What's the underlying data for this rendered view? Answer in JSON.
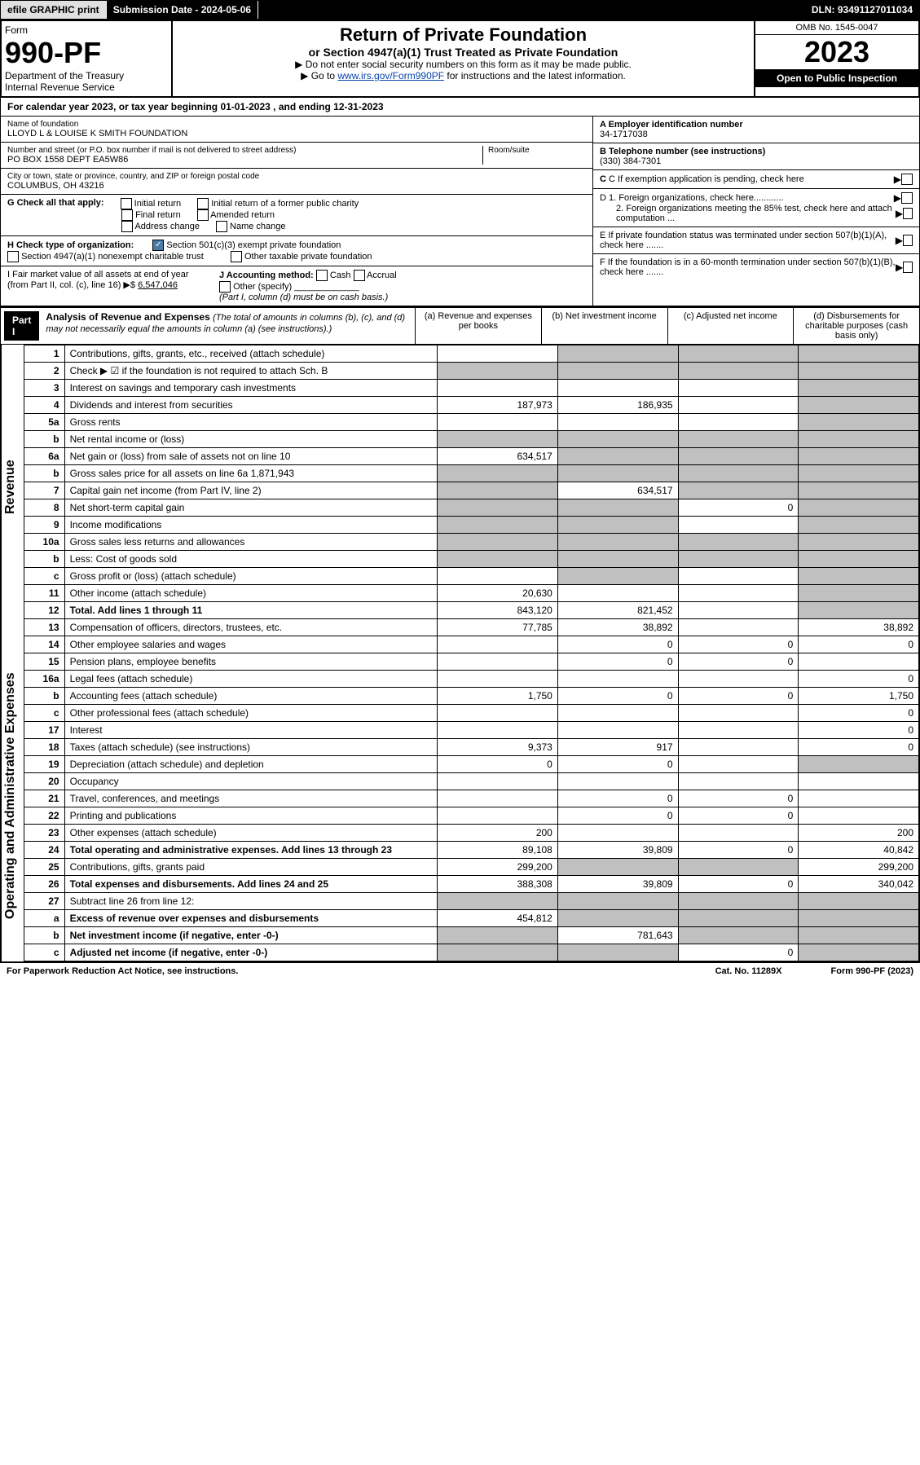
{
  "topbar": {
    "efile": "efile GRAPHIC print",
    "submission": "Submission Date - 2024-05-06",
    "dln": "DLN: 93491127011034"
  },
  "header": {
    "form_label": "Form",
    "form_no": "990-PF",
    "dept": "Department of the Treasury",
    "irs": "Internal Revenue Service",
    "title": "Return of Private Foundation",
    "subtitle": "or Section 4947(a)(1) Trust Treated as Private Foundation",
    "instr1": "▶ Do not enter social security numbers on this form as it may be made public.",
    "instr2_pre": "▶ Go to ",
    "instr2_link": "www.irs.gov/Form990PF",
    "instr2_post": " for instructions and the latest information.",
    "omb": "OMB No. 1545-0047",
    "year": "2023",
    "open": "Open to Public Inspection"
  },
  "calyear": "For calendar year 2023, or tax year beginning 01-01-2023          , and ending 12-31-2023",
  "foundation": {
    "name_label": "Name of foundation",
    "name": "LLOYD L & LOUISE K SMITH FOUNDATION",
    "addr_label": "Number and street (or P.O. box number if mail is not delivered to street address)",
    "addr": "PO BOX 1558 DEPT EA5W86",
    "room_label": "Room/suite",
    "city_label": "City or town, state or province, country, and ZIP or foreign postal code",
    "city": "COLUMBUS, OH  43216",
    "ein_label": "A Employer identification number",
    "ein": "34-1717038",
    "phone_label": "B Telephone number (see instructions)",
    "phone": "(330) 384-7301",
    "c_label": "C If exemption application is pending, check here",
    "d1": "D 1. Foreign organizations, check here............",
    "d2": "2. Foreign organizations meeting the 85% test, check here and attach computation ...",
    "e_label": "E  If private foundation status was terminated under section 507(b)(1)(A), check here .......",
    "f_label": "F  If the foundation is in a 60-month termination under section 507(b)(1)(B), check here ......."
  },
  "checks": {
    "g_label": "G Check all that apply:",
    "initial": "Initial return",
    "initial_former": "Initial return of a former public charity",
    "final": "Final return",
    "amended": "Amended return",
    "address": "Address change",
    "name": "Name change",
    "h_label": "H Check type of organization:",
    "501c3": "Section 501(c)(3) exempt private foundation",
    "4947": "Section 4947(a)(1) nonexempt charitable trust",
    "other_taxable": "Other taxable private foundation",
    "i_label": "I Fair market value of all assets at end of year (from Part II, col. (c), line 16)",
    "i_value": "6,547,046",
    "j_label": "J Accounting method:",
    "cash": "Cash",
    "accrual": "Accrual",
    "other_specify": "Other (specify)",
    "j_note": "(Part I, column (d) must be on cash basis.)"
  },
  "part1": {
    "label": "Part I",
    "title": "Analysis of Revenue and Expenses",
    "subtitle": "(The total of amounts in columns (b), (c), and (d) may not necessarily equal the amounts in column (a) (see instructions).)",
    "col_a": "(a)   Revenue and expenses per books",
    "col_b": "(b)   Net investment income",
    "col_c": "(c)   Adjusted net income",
    "col_d": "(d)   Disbursements for charitable purposes (cash basis only)"
  },
  "side": {
    "revenue": "Revenue",
    "expenses": "Operating and Administrative Expenses"
  },
  "rows": [
    {
      "n": "1",
      "desc": "Contributions, gifts, grants, etc., received (attach schedule)",
      "a": "",
      "b": "shaded",
      "c": "shaded",
      "d": "shaded"
    },
    {
      "n": "2",
      "desc": "Check ▶ ☑ if the foundation is not required to attach Sch. B",
      "a": "shaded",
      "b": "shaded",
      "c": "shaded",
      "d": "shaded"
    },
    {
      "n": "3",
      "desc": "Interest on savings and temporary cash investments",
      "a": "",
      "b": "",
      "c": "",
      "d": "shaded"
    },
    {
      "n": "4",
      "desc": "Dividends and interest from securities",
      "a": "187,973",
      "b": "186,935",
      "c": "",
      "d": "shaded"
    },
    {
      "n": "5a",
      "desc": "Gross rents",
      "a": "",
      "b": "",
      "c": "",
      "d": "shaded"
    },
    {
      "n": "b",
      "desc": "Net rental income or (loss)",
      "a": "shaded",
      "b": "shaded",
      "c": "shaded",
      "d": "shaded"
    },
    {
      "n": "6a",
      "desc": "Net gain or (loss) from sale of assets not on line 10",
      "a": "634,517",
      "b": "shaded",
      "c": "shaded",
      "d": "shaded"
    },
    {
      "n": "b",
      "desc": "Gross sales price for all assets on line 6a        1,871,943",
      "a": "shaded",
      "b": "shaded",
      "c": "shaded",
      "d": "shaded"
    },
    {
      "n": "7",
      "desc": "Capital gain net income (from Part IV, line 2)",
      "a": "shaded",
      "b": "634,517",
      "c": "shaded",
      "d": "shaded"
    },
    {
      "n": "8",
      "desc": "Net short-term capital gain",
      "a": "shaded",
      "b": "shaded",
      "c": "0",
      "d": "shaded"
    },
    {
      "n": "9",
      "desc": "Income modifications",
      "a": "shaded",
      "b": "shaded",
      "c": "",
      "d": "shaded"
    },
    {
      "n": "10a",
      "desc": "Gross sales less returns and allowances",
      "a": "shaded",
      "b": "shaded",
      "c": "shaded",
      "d": "shaded"
    },
    {
      "n": "b",
      "desc": "Less: Cost of goods sold",
      "a": "shaded",
      "b": "shaded",
      "c": "shaded",
      "d": "shaded"
    },
    {
      "n": "c",
      "desc": "Gross profit or (loss) (attach schedule)",
      "a": "",
      "b": "shaded",
      "c": "",
      "d": "shaded"
    },
    {
      "n": "11",
      "desc": "Other income (attach schedule)",
      "a": "20,630",
      "b": "",
      "c": "",
      "d": "shaded"
    },
    {
      "n": "12",
      "desc": "Total. Add lines 1 through 11",
      "a": "843,120",
      "b": "821,452",
      "c": "",
      "d": "shaded",
      "bold": true
    },
    {
      "n": "13",
      "desc": "Compensation of officers, directors, trustees, etc.",
      "a": "77,785",
      "b": "38,892",
      "c": "",
      "d": "38,892"
    },
    {
      "n": "14",
      "desc": "Other employee salaries and wages",
      "a": "",
      "b": "0",
      "c": "0",
      "d": "0"
    },
    {
      "n": "15",
      "desc": "Pension plans, employee benefits",
      "a": "",
      "b": "0",
      "c": "0",
      "d": ""
    },
    {
      "n": "16a",
      "desc": "Legal fees (attach schedule)",
      "a": "",
      "b": "",
      "c": "",
      "d": "0"
    },
    {
      "n": "b",
      "desc": "Accounting fees (attach schedule)",
      "a": "1,750",
      "b": "0",
      "c": "0",
      "d": "1,750"
    },
    {
      "n": "c",
      "desc": "Other professional fees (attach schedule)",
      "a": "",
      "b": "",
      "c": "",
      "d": "0"
    },
    {
      "n": "17",
      "desc": "Interest",
      "a": "",
      "b": "",
      "c": "",
      "d": "0"
    },
    {
      "n": "18",
      "desc": "Taxes (attach schedule) (see instructions)",
      "a": "9,373",
      "b": "917",
      "c": "",
      "d": "0"
    },
    {
      "n": "19",
      "desc": "Depreciation (attach schedule) and depletion",
      "a": "0",
      "b": "0",
      "c": "",
      "d": "shaded"
    },
    {
      "n": "20",
      "desc": "Occupancy",
      "a": "",
      "b": "",
      "c": "",
      "d": ""
    },
    {
      "n": "21",
      "desc": "Travel, conferences, and meetings",
      "a": "",
      "b": "0",
      "c": "0",
      "d": ""
    },
    {
      "n": "22",
      "desc": "Printing and publications",
      "a": "",
      "b": "0",
      "c": "0",
      "d": ""
    },
    {
      "n": "23",
      "desc": "Other expenses (attach schedule)",
      "a": "200",
      "b": "",
      "c": "",
      "d": "200"
    },
    {
      "n": "24",
      "desc": "Total operating and administrative expenses. Add lines 13 through 23",
      "a": "89,108",
      "b": "39,809",
      "c": "0",
      "d": "40,842",
      "bold": true
    },
    {
      "n": "25",
      "desc": "Contributions, gifts, grants paid",
      "a": "299,200",
      "b": "shaded",
      "c": "shaded",
      "d": "299,200"
    },
    {
      "n": "26",
      "desc": "Total expenses and disbursements. Add lines 24 and 25",
      "a": "388,308",
      "b": "39,809",
      "c": "0",
      "d": "340,042",
      "bold": true
    },
    {
      "n": "27",
      "desc": "Subtract line 26 from line 12:",
      "a": "shaded",
      "b": "shaded",
      "c": "shaded",
      "d": "shaded"
    },
    {
      "n": "a",
      "desc": "Excess of revenue over expenses and disbursements",
      "a": "454,812",
      "b": "shaded",
      "c": "shaded",
      "d": "shaded",
      "bold": true
    },
    {
      "n": "b",
      "desc": "Net investment income (if negative, enter -0-)",
      "a": "shaded",
      "b": "781,643",
      "c": "shaded",
      "d": "shaded",
      "bold": true
    },
    {
      "n": "c",
      "desc": "Adjusted net income (if negative, enter -0-)",
      "a": "shaded",
      "b": "shaded",
      "c": "0",
      "d": "shaded",
      "bold": true
    }
  ],
  "footer": {
    "left": "For Paperwork Reduction Act Notice, see instructions.",
    "cat": "Cat. No. 11289X",
    "right": "Form 990-PF (2023)"
  }
}
